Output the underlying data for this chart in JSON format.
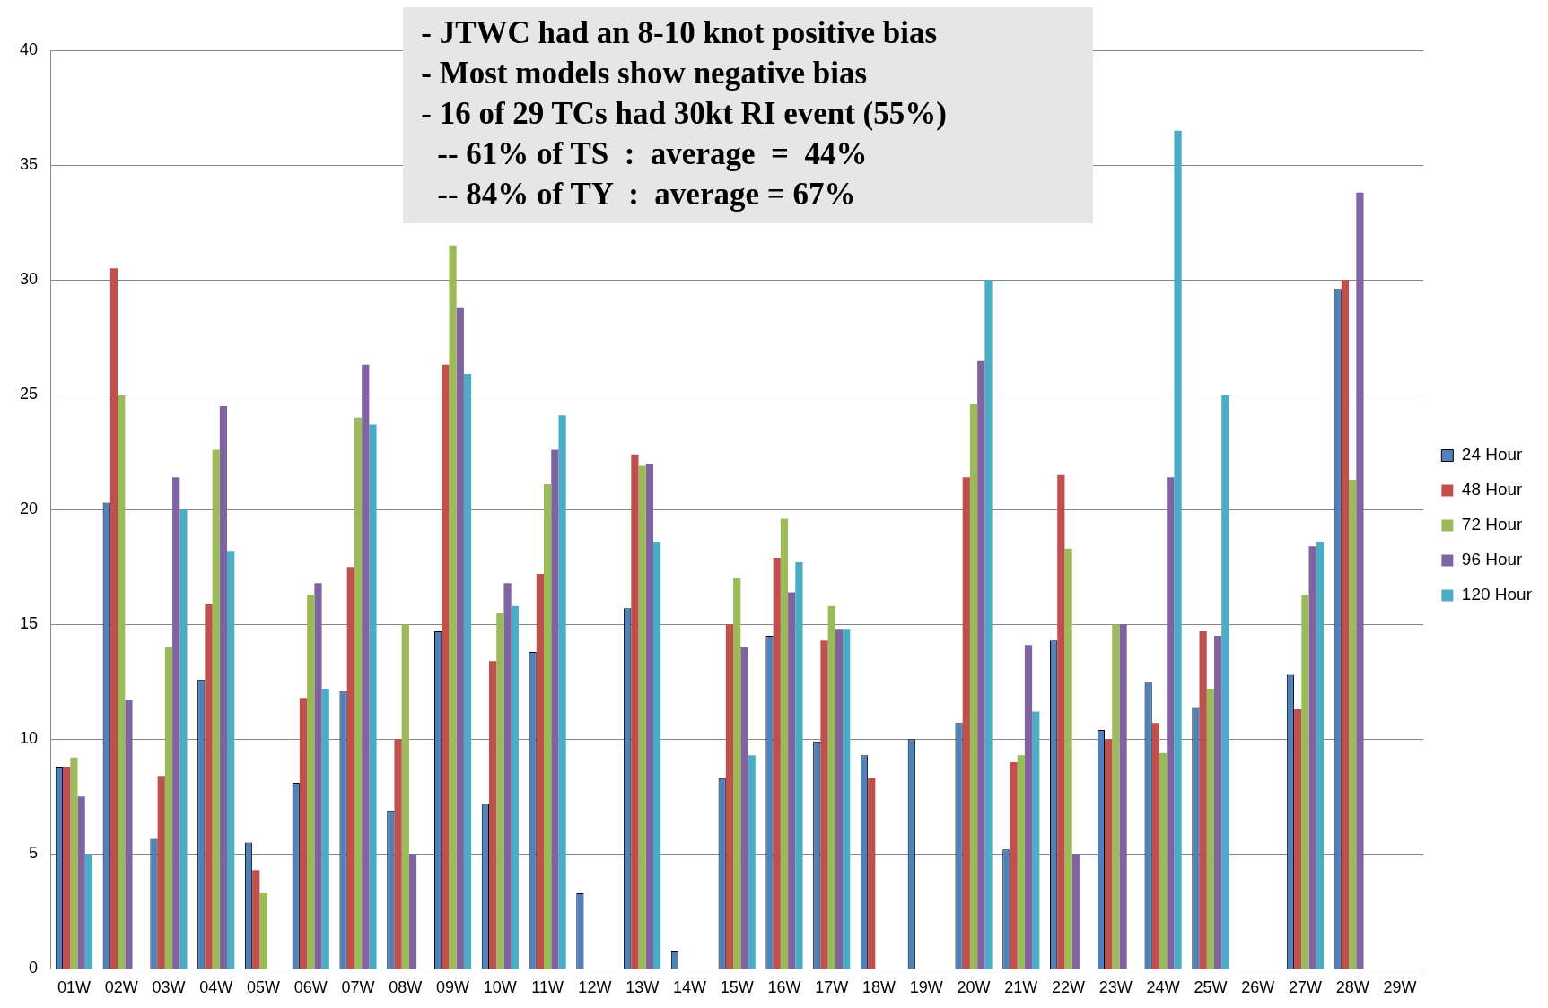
{
  "chart_data": {
    "type": "bar",
    "categories": [
      "01W",
      "02W",
      "03W",
      "04W",
      "05W",
      "06W",
      "07W",
      "08W",
      "09W",
      "10W",
      "11W",
      "12W",
      "13W",
      "14W",
      "15W",
      "16W",
      "17W",
      "18W",
      "19W",
      "20W",
      "21W",
      "22W",
      "23W",
      "24W",
      "25W",
      "26W",
      "27W",
      "28W",
      "29W"
    ],
    "series": [
      {
        "name": "24 Hour",
        "color": "#4f81bd",
        "values": [
          8.8,
          20.3,
          5.7,
          12.6,
          5.5,
          8.1,
          12.1,
          6.9,
          14.7,
          7.2,
          13.8,
          3.3,
          15.7,
          0.8,
          8.3,
          14.5,
          9.9,
          9.3,
          10.0,
          10.7,
          5.2,
          14.3,
          10.4,
          12.5,
          11.4,
          null,
          12.8,
          29.6,
          null
        ]
      },
      {
        "name": "48 Hour",
        "color": "#c0504d",
        "values": [
          8.8,
          30.5,
          8.4,
          15.9,
          4.3,
          11.8,
          17.5,
          10.0,
          26.3,
          13.4,
          17.2,
          null,
          22.4,
          null,
          15.0,
          17.9,
          14.3,
          8.3,
          null,
          21.4,
          9.0,
          21.5,
          10.0,
          10.7,
          14.7,
          null,
          11.3,
          30.0,
          null
        ]
      },
      {
        "name": "72 Hour",
        "color": "#9bbb59",
        "values": [
          9.2,
          25.0,
          14.0,
          22.6,
          3.3,
          16.3,
          24.0,
          15.0,
          31.5,
          15.5,
          21.1,
          null,
          21.9,
          null,
          17.0,
          19.6,
          15.8,
          null,
          null,
          24.6,
          9.3,
          18.3,
          15.0,
          9.4,
          12.2,
          null,
          16.3,
          21.3,
          null
        ]
      },
      {
        "name": "96 Hour",
        "color": "#8064a2",
        "values": [
          7.5,
          11.7,
          21.4,
          24.5,
          null,
          16.8,
          26.3,
          5.0,
          28.8,
          16.8,
          22.6,
          null,
          22.0,
          null,
          14.0,
          16.4,
          14.8,
          null,
          null,
          26.5,
          14.1,
          5.0,
          15.0,
          21.4,
          14.5,
          null,
          18.4,
          33.8,
          null
        ]
      },
      {
        "name": "120 Hour",
        "color": "#4bacc6",
        "values": [
          5.0,
          null,
          20.0,
          18.2,
          null,
          12.2,
          23.7,
          null,
          25.9,
          15.8,
          24.1,
          null,
          18.6,
          null,
          9.3,
          17.7,
          14.8,
          null,
          null,
          30.0,
          11.2,
          null,
          null,
          36.5,
          25.0,
          null,
          18.6,
          null,
          null
        ]
      }
    ],
    "ylim": [
      0,
      40
    ],
    "yticks": [
      0,
      5,
      10,
      15,
      20,
      25,
      30,
      35,
      40
    ],
    "grid": "y",
    "legend": "right",
    "annotations": [
      "- JTWC had an 8-10 knot positive bias",
      "- Most models show negative bias",
      "- 16 of 29 TCs had 30kt RI event (55%)",
      "  -- 61% of TS  :  average  =  44%",
      "  -- 84% of TY  :  average = 67%"
    ]
  }
}
